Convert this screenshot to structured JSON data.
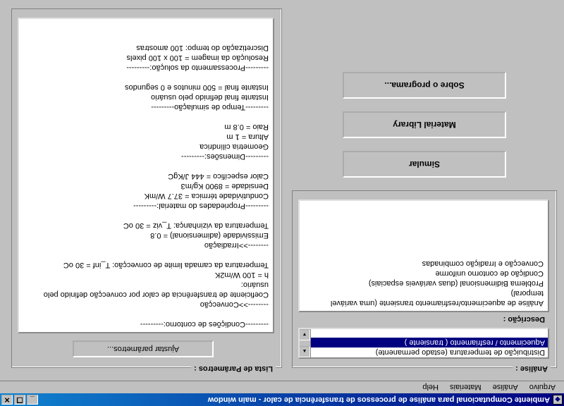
{
  "window": {
    "title": "Ambiente Computacional para análise de processos de transferência de calor - main window"
  },
  "menubar": {
    "items": [
      "Arquivo",
      "Análise",
      "Materiais",
      "Help"
    ]
  },
  "analise": {
    "group_label": "Análise :",
    "list": {
      "items": [
        "Distribuição de temperatura (estado permanente)",
        "Aquecimento / resfriamento ( transiente )"
      ],
      "selected_index": 1
    },
    "descricao_label": "Descrição :",
    "descricao_lines": [
      "Análise de aquecimento/resfriamento transiente (uma variável temporal)",
      "Problema Bidimensional (duas variáveis espaciais)",
      "Condição de contorno uniforme",
      "Convecção e Irradição combinadas"
    ]
  },
  "buttons": {
    "simular": "Simular",
    "material": "Material Library",
    "sobre": "Sobre o programa..."
  },
  "lista": {
    "group_label": "Lista de Parâmetros :",
    "ajustar_btn": "Ajustar parâmetros...",
    "text": "---------Condições de contorno:---------\n\n-------->>Convecção\nCoeficiente de transferência de calor por convecção definido pelo usuário:\nh = 100 W/m2K\nTemperatura da camada limite de convecção:  T_inf = 30 oC\n\n-------->>Irradiação\nEmissividade (adimensional) =  0.8\nTemperatura da vizinhança:  T_viz = 30 oC\n\n---------Propriedades do material:---------\nCondutividade térmica = 37.7 W/mK\nDensidade = 8900 Kg/m3\nCalor específico = 444 J/KgC\n\n---------Dimensões:---------\nGeometria cilíndrica\nAltura = 1 m\nRaio = 0.8 m\n\n---------Tempo de simulação---------\nInstante final definido pelo usuário\nInstante final = 500 minutos e 0 segundos\n\n---------Processamento da solução:---------\nResolução da imagem = 100 x 100 pixels\nDiscretização do tempo:  100 amostras"
  },
  "colors": {
    "titlebar_start": "#000080",
    "titlebar_end": "#1084d0",
    "background": "#c0c0c0",
    "selection": "#000080"
  }
}
